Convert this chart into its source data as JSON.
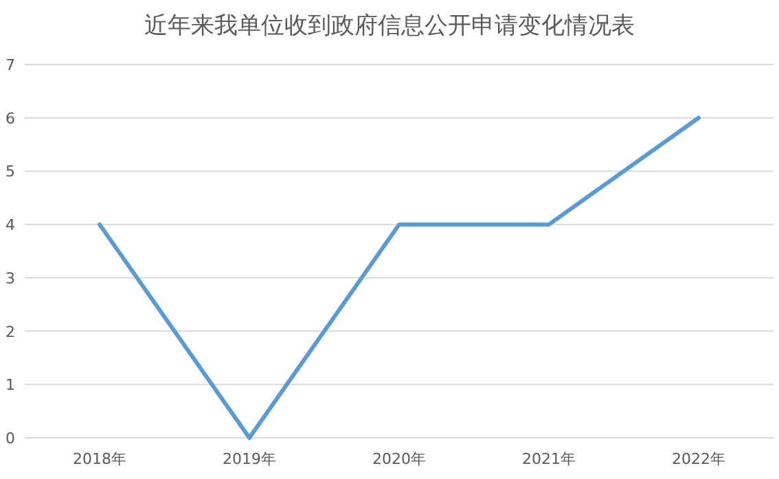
{
  "chart_data": {
    "type": "line",
    "title": "近年来我单位收到政府信息公开申请变化情况表",
    "categories": [
      "2018年",
      "2019年",
      "2020年",
      "2021年",
      "2022年"
    ],
    "values": [
      4,
      0,
      4,
      4,
      6
    ],
    "color": "#5b9bd5",
    "ylim": [
      0,
      7
    ],
    "yticks": [
      0,
      1,
      2,
      3,
      4,
      5,
      6,
      7
    ],
    "grid": "y"
  }
}
